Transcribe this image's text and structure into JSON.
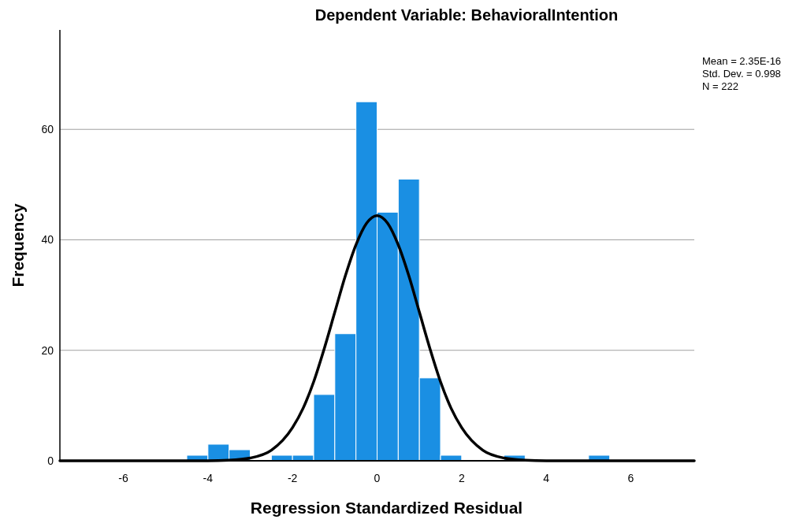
{
  "chart_data": {
    "type": "histogram",
    "title": "Dependent Variable: BehavioralIntention",
    "xlabel": "Regression Standardized Residual",
    "ylabel": "Frequency",
    "bins": [
      -4.5,
      -4,
      -3.5,
      -3,
      -2.5,
      -2,
      -1.5,
      -1,
      -0.5,
      0,
      0.5,
      1,
      1.5,
      2,
      2.5,
      3,
      3.5,
      4,
      4.5,
      5,
      5.5
    ],
    "values": [
      1,
      3,
      2,
      0,
      1,
      1,
      12,
      23,
      65,
      45,
      51,
      15,
      1,
      0,
      0,
      1,
      0,
      0,
      0,
      1
    ],
    "color": "#1a8fe3",
    "series": [
      {
        "type": "line",
        "color": "#000000",
        "x": [
          -7.5,
          -4,
          -3.5,
          -3,
          -2.5,
          -2,
          -1.75,
          -1.5,
          -1.25,
          -1,
          -0.75,
          -0.5,
          -0.25,
          0,
          0.25,
          0.5,
          0.75,
          1,
          1.25,
          1.5,
          1.75,
          2,
          2.5,
          3,
          3.5,
          4,
          7.5
        ],
        "values": [
          0,
          0,
          0.1,
          0.5,
          1.9,
          6,
          9.5,
          14.3,
          20.3,
          26.9,
          33.5,
          39.1,
          43,
          44.4,
          43,
          39.1,
          33.5,
          26.9,
          20.3,
          14.3,
          9.5,
          6,
          1.9,
          0.5,
          0.1,
          0,
          0
        ]
      }
    ],
    "xlim": [
      -7.5,
      7.5
    ],
    "xticks": [
      -6,
      -4,
      -2,
      0,
      2,
      4,
      6
    ],
    "ylim": [
      0,
      78
    ],
    "yticks": [
      0,
      20,
      40,
      60
    ],
    "grid": "y",
    "annotations": [
      "Mean = 2.35E-16",
      "Std. Dev. = 0.998",
      "N = 222"
    ]
  }
}
